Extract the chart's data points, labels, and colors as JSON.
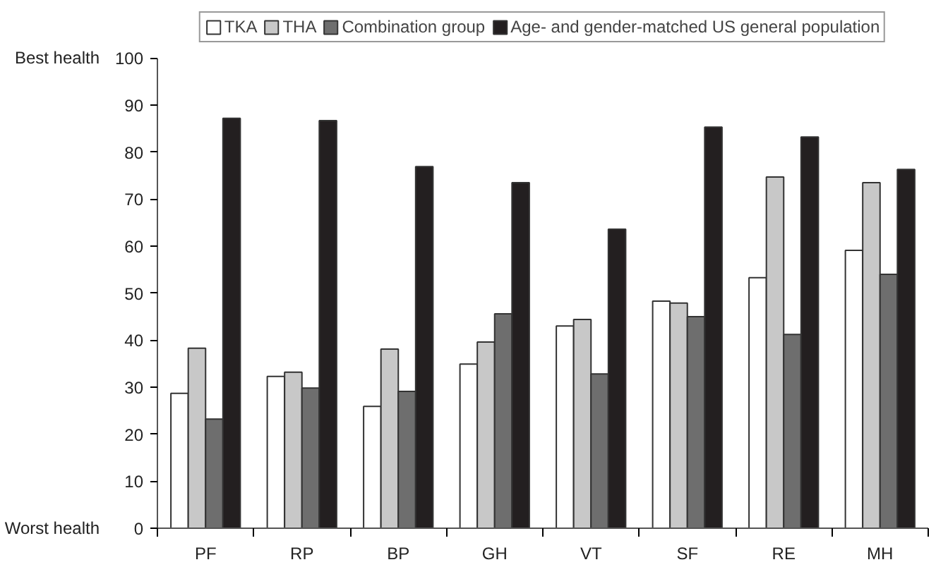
{
  "chart_data": {
    "type": "bar",
    "categories": [
      "PF",
      "RP",
      "BP",
      "GH",
      "VT",
      "SF",
      "RE",
      "MH"
    ],
    "series": [
      {
        "name": "TKA",
        "color": "#ffffff",
        "values": [
          28.7,
          32.3,
          25.9,
          34.9,
          43.0,
          48.3,
          53.3,
          59.1
        ]
      },
      {
        "name": "THA",
        "color": "#c8c8c8",
        "values": [
          38.3,
          33.2,
          38.1,
          39.6,
          44.4,
          47.9,
          74.7,
          73.5
        ]
      },
      {
        "name": "Combination group",
        "color": "#6e6e6e",
        "values": [
          23.2,
          29.8,
          29.1,
          45.6,
          32.8,
          45.0,
          41.2,
          54.0
        ]
      },
      {
        "name": "Age- and gender-matched US general population",
        "color": "#231f20",
        "values": [
          87.2,
          86.7,
          76.9,
          73.5,
          63.6,
          85.3,
          83.2,
          76.3
        ]
      }
    ],
    "ylim": [
      0,
      100
    ],
    "yticks": [
      0,
      10,
      20,
      30,
      40,
      50,
      60,
      70,
      80,
      90,
      100
    ],
    "annotations": [
      "Best health",
      "Worst health"
    ],
    "grid": false,
    "legend": "top"
  }
}
